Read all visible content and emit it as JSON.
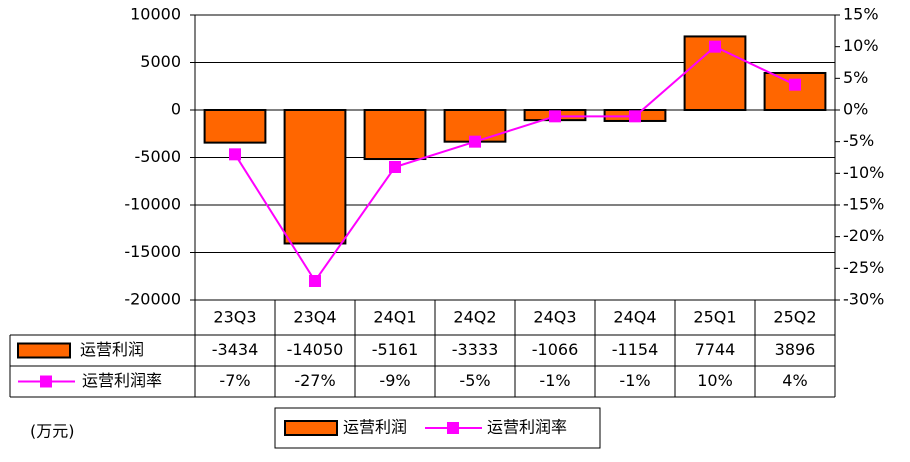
{
  "chart_data": {
    "type": "bar-line-table",
    "categories": [
      "23Q3",
      "23Q4",
      "24Q1",
      "24Q2",
      "24Q3",
      "24Q4",
      "25Q1",
      "25Q2"
    ],
    "series": [
      {
        "name": "运营利润",
        "type": "bar",
        "color": "#ff6600",
        "values": [
          -3434,
          -14050,
          -5161,
          -3333,
          -1066,
          -1154,
          7744,
          3896
        ]
      },
      {
        "name": "运营利润率",
        "type": "line",
        "axis": "y2",
        "color": "#ff00ff",
        "values": [
          -7,
          -27,
          -9,
          -5,
          -1,
          -1,
          10,
          4
        ],
        "value_labels": [
          "-7%",
          "-27%",
          "-9%",
          "-5%",
          "-1%",
          "-1%",
          "10%",
          "4%"
        ]
      }
    ],
    "ylim": [
      -20000,
      10000
    ],
    "yticks": [
      -20000,
      -15000,
      -10000,
      -5000,
      0,
      5000,
      10000
    ],
    "y2lim": [
      -30,
      15
    ],
    "y2ticks": [
      {
        "value": -30,
        "label": "-30%"
      },
      {
        "value": -25,
        "label": "-25%"
      },
      {
        "value": -20,
        "label": "-20%"
      },
      {
        "value": -15,
        "label": "-15%"
      },
      {
        "value": -10,
        "label": "-10%"
      },
      {
        "value": -5,
        "label": "-5%"
      },
      {
        "value": 0,
        "label": "0%"
      },
      {
        "value": 5,
        "label": "5%"
      },
      {
        "value": 10,
        "label": "10%"
      },
      {
        "value": 15,
        "label": "15%"
      }
    ],
    "grid": true,
    "annotation": "(万元)"
  }
}
